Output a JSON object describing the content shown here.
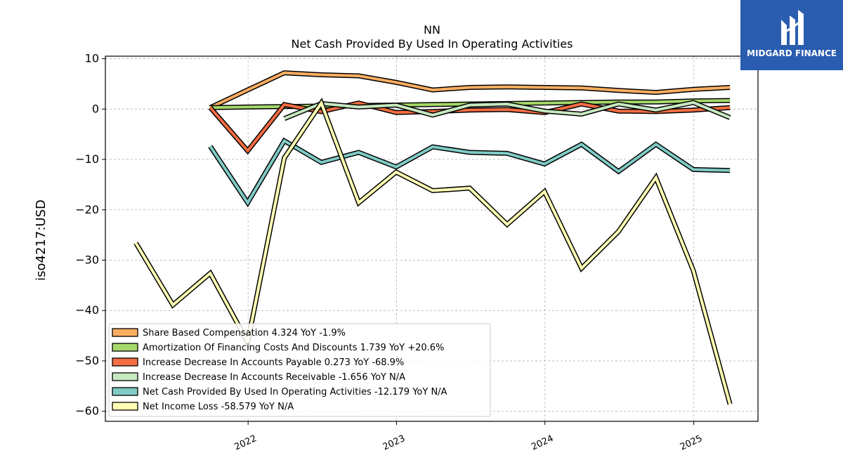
{
  "brand": {
    "name": "MIDGARD FINANCE",
    "color": "#2a5cb0"
  },
  "chart_data": {
    "type": "line",
    "title": "NN",
    "subtitle": "Net Cash Provided By Used In Operating Activities",
    "ylabel": "iso4217:USD",
    "xlabel": "",
    "ylim": [
      -62,
      10.5
    ],
    "xlim": [
      "2021-01-15",
      "2025-06-08"
    ],
    "yticks": [
      10,
      0,
      -10,
      -20,
      -30,
      -40,
      -50,
      -60
    ],
    "ytick_labels": [
      "10",
      "0",
      "−10",
      "−20",
      "−30",
      "−40",
      "−50",
      "−60"
    ],
    "xticks": [
      "2022-01-01",
      "2023-01-01",
      "2024-01-01",
      "2025-01-01"
    ],
    "xtick_labels": [
      "2022",
      "2023",
      "2024",
      "2025"
    ],
    "grid": true,
    "legend_position": "lower-left",
    "series": [
      {
        "name": "Share Based Compensation",
        "legend": "Share Based Compensation  4.324 YoY -1.9%",
        "color": "#fdae61",
        "x": [
          "2021-09-30",
          "2021-12-31",
          "2022-03-31",
          "2022-06-30",
          "2022-09-30",
          "2022-12-31",
          "2023-03-31",
          "2023-06-30",
          "2023-09-30",
          "2023-12-31",
          "2024-03-31",
          "2024-06-30",
          "2024-09-30",
          "2024-12-31",
          "2025-03-31"
        ],
        "values": [
          0.3,
          3.8,
          7.2,
          6.8,
          6.6,
          5.3,
          3.8,
          4.3,
          4.4,
          4.3,
          4.2,
          3.7,
          3.3,
          3.9,
          4.3
        ]
      },
      {
        "name": "Amortization Of Financing Costs And Discounts",
        "legend": "Amortization Of Financing Costs And Discounts  1.739 YoY +20.6%",
        "color": "#a6d96a",
        "x": [
          "2021-09-30",
          "2021-12-31",
          "2022-03-31",
          "2022-06-30",
          "2022-09-30",
          "2022-12-31",
          "2023-03-31",
          "2023-06-30",
          "2023-09-30",
          "2023-12-31",
          "2024-03-31",
          "2024-06-30",
          "2024-09-30",
          "2024-12-31",
          "2025-03-31"
        ],
        "values": [
          0.3,
          0.4,
          0.5,
          0.6,
          0.7,
          0.8,
          0.9,
          1.0,
          1.1,
          1.2,
          1.3,
          1.4,
          1.4,
          1.6,
          1.7
        ]
      },
      {
        "name": "Increase Decrease In Accounts Payable",
        "legend": "Increase Decrease In Accounts Payable  0.273 YoY -68.9%",
        "color": "#f46d43",
        "x": [
          "2021-09-30",
          "2021-12-31",
          "2022-03-31",
          "2022-06-30",
          "2022-09-30",
          "2022-12-31",
          "2023-03-31",
          "2023-06-30",
          "2023-09-30",
          "2023-12-31",
          "2024-03-31",
          "2024-06-30",
          "2024-09-30",
          "2024-12-31",
          "2025-03-31"
        ],
        "values": [
          0.3,
          -8.3,
          0.9,
          -0.5,
          1.2,
          -0.7,
          -0.5,
          -0.2,
          -0.1,
          -0.7,
          1.0,
          -0.4,
          -0.5,
          -0.2,
          0.3
        ]
      },
      {
        "name": "Increase Decrease In Accounts Receivable",
        "legend": "Increase Decrease In Accounts Receivable  -1.656 YoY N/A",
        "color": "#c7e9c0",
        "x": [
          "2022-03-31",
          "2022-06-30",
          "2022-09-30",
          "2022-12-31",
          "2023-03-31",
          "2023-06-30",
          "2023-09-30",
          "2023-12-31",
          "2024-03-31",
          "2024-06-30",
          "2024-09-30",
          "2024-12-31",
          "2025-03-31"
        ],
        "values": [
          -1.9,
          1.1,
          0.4,
          0.8,
          -1.2,
          0.8,
          1.0,
          -0.4,
          -1.0,
          1.0,
          -0.2,
          1.3,
          -1.7
        ]
      },
      {
        "name": "Net Cash Provided By Used In Operating Activities",
        "legend": "Net Cash Provided By Used In Operating Activities  -12.179 YoY N/A",
        "color": "#80cbc4",
        "x": [
          "2021-09-30",
          "2021-12-31",
          "2022-03-31",
          "2022-06-30",
          "2022-09-30",
          "2022-12-31",
          "2023-03-31",
          "2023-06-30",
          "2023-09-30",
          "2023-12-31",
          "2024-03-31",
          "2024-06-30",
          "2024-09-30",
          "2024-12-31",
          "2025-03-31"
        ],
        "values": [
          -7.4,
          -18.6,
          -6.3,
          -10.6,
          -8.6,
          -11.5,
          -7.5,
          -8.6,
          -8.8,
          -10.9,
          -7.0,
          -12.4,
          -7.0,
          -12.0,
          -12.2
        ]
      },
      {
        "name": "Net Income Loss",
        "legend": "Net Income Loss  -58.579 YoY N/A",
        "color": "#ffffb3",
        "x": [
          "2021-03-31",
          "2021-06-30",
          "2021-09-30",
          "2021-12-31",
          "2022-03-31",
          "2022-06-30",
          "2022-09-30",
          "2022-12-31",
          "2023-03-31",
          "2023-06-30",
          "2023-09-30",
          "2023-12-31",
          "2024-03-31",
          "2024-06-30",
          "2024-09-30",
          "2024-12-31",
          "2025-03-31"
        ],
        "values": [
          -26.6,
          -38.9,
          -32.6,
          -46.3,
          -9.7,
          1.2,
          -18.6,
          -12.5,
          -16.2,
          -15.7,
          -22.9,
          -16.4,
          -31.6,
          -24.3,
          -13.6,
          -32.1,
          -58.6
        ]
      }
    ]
  }
}
